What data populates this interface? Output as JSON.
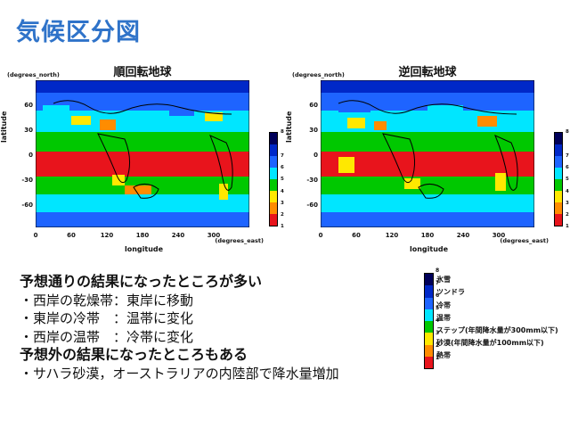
{
  "slide": {
    "title": "気候区分図"
  },
  "axes": {
    "unit_north": "(degrees_north)",
    "unit_east": "(degrees_east)",
    "ylabel": "latitude",
    "xlabel": "longitude",
    "yticks": [
      "60",
      "30",
      "0",
      "-30",
      "-60"
    ],
    "xticks": [
      "0",
      "60",
      "120",
      "180",
      "240",
      "300"
    ]
  },
  "maps": [
    {
      "title": "順回転地球"
    },
    {
      "title": "逆回転地球"
    }
  ],
  "colorbar": {
    "ticks": [
      "1",
      "2",
      "3",
      "4",
      "5",
      "6",
      "7",
      "8"
    ],
    "colors": [
      "#e8141c",
      "#ff8c00",
      "#ffe800",
      "#00c800",
      "#00e6ff",
      "#1e64ff",
      "#0028c8",
      "#00005a"
    ]
  },
  "legend": {
    "items": [
      {
        "num": "8",
        "label": "氷雪"
      },
      {
        "num": "7",
        "label": "ツンドラ"
      },
      {
        "num": "6",
        "label": "冷帯"
      },
      {
        "num": "5",
        "label": "温帯"
      },
      {
        "num": "4",
        "label": "ステップ(年間降水量が300mm以下)"
      },
      {
        "num": "3",
        "label": "砂漠(年間降水量が100mm以下)"
      },
      {
        "num": "2",
        "label": "熱帯"
      },
      {
        "num": "1",
        "label": ""
      }
    ]
  },
  "text": {
    "line1": "予想通りの結果になったところが多い",
    "line2": "・西岸の乾燥帯：東岸に移動",
    "line3": "・東岸の冷帯　：温帯に変化",
    "line4": "・西岸の温帯　：冷帯に変化",
    "line5": "予想外の結果になったところもある",
    "line6": "・サハラ砂漠，オーストラリアの内陸部で降水量増加"
  }
}
